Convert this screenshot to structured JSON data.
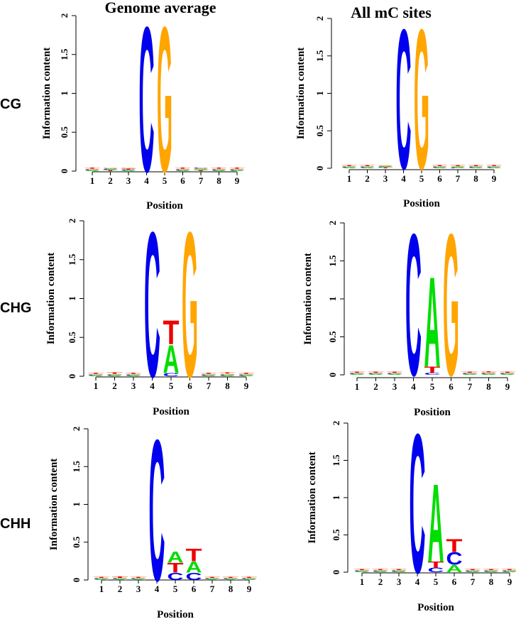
{
  "figure": {
    "col_titles": [
      "Genome average",
      "All mC sites"
    ],
    "row_labels": [
      "CG",
      "CHG",
      "CHH"
    ],
    "colors": {
      "A": "#00dd00",
      "C": "#0000ee",
      "G": "#ffa500",
      "T": "#ee0000"
    }
  },
  "chart_data": [
    {
      "id": "cg-genome",
      "type": "sequence_logo",
      "context": "CG",
      "title": "Genome average",
      "xlabel": "Position",
      "ylabel": "Information content",
      "ylim": [
        0,
        2
      ],
      "y_ticks": [
        "0",
        "0.5",
        "1",
        "1.5",
        "2"
      ],
      "x_ticks": [
        "1",
        "2",
        "3",
        "4",
        "5",
        "6",
        "7",
        "8",
        "9"
      ],
      "positions": [
        [
          [
            "A",
            0.01
          ],
          [
            "C",
            0.01
          ],
          [
            "G",
            0.01
          ],
          [
            "T",
            0.01
          ]
        ],
        [
          [
            "T",
            0.01
          ],
          [
            "A",
            0.01
          ],
          [
            "C",
            0.01
          ],
          [
            "G",
            0.01
          ]
        ],
        [
          [
            "A",
            0.01
          ],
          [
            "C",
            0.01
          ],
          [
            "T",
            0.01
          ],
          [
            "G",
            0.01
          ]
        ],
        [
          [
            "C",
            1.92
          ]
        ],
        [
          [
            "G",
            1.92
          ]
        ],
        [
          [
            "A",
            0.01
          ],
          [
            "C",
            0.01
          ],
          [
            "G",
            0.01
          ],
          [
            "T",
            0.01
          ]
        ],
        [
          [
            "T",
            0.01
          ],
          [
            "A",
            0.01
          ],
          [
            "G",
            0.01
          ],
          [
            "C",
            0.01
          ]
        ],
        [
          [
            "A",
            0.01
          ],
          [
            "C",
            0.01
          ],
          [
            "G",
            0.01
          ],
          [
            "T",
            0.01
          ]
        ],
        [
          [
            "A",
            0.01
          ],
          [
            "C",
            0.01
          ],
          [
            "G",
            0.01
          ],
          [
            "T",
            0.01
          ]
        ]
      ]
    },
    {
      "id": "cg-mc",
      "type": "sequence_logo",
      "context": "CG",
      "title": "All mC sites",
      "xlabel": "Position",
      "ylabel": "Information content",
      "ylim": [
        0,
        2
      ],
      "y_ticks": [
        "0",
        "0.5",
        "1",
        "1.5",
        "2"
      ],
      "x_ticks": [
        "1",
        "2",
        "3",
        "4",
        "5",
        "6",
        "7",
        "8",
        "9"
      ],
      "positions": [
        [
          [
            "A",
            0.01
          ],
          [
            "C",
            0.01
          ],
          [
            "G",
            0.01
          ],
          [
            "T",
            0.01
          ]
        ],
        [
          [
            "A",
            0.01
          ],
          [
            "C",
            0.01
          ],
          [
            "G",
            0.01
          ],
          [
            "T",
            0.01
          ]
        ],
        [
          [
            "T",
            0.01
          ],
          [
            "C",
            0.01
          ],
          [
            "A",
            0.01
          ],
          [
            "G",
            0.01
          ]
        ],
        [
          [
            "C",
            1.92
          ]
        ],
        [
          [
            "G",
            1.92
          ]
        ],
        [
          [
            "A",
            0.01
          ],
          [
            "C",
            0.01
          ],
          [
            "G",
            0.01
          ],
          [
            "T",
            0.01
          ]
        ],
        [
          [
            "C",
            0.01
          ],
          [
            "A",
            0.01
          ],
          [
            "G",
            0.01
          ],
          [
            "T",
            0.01
          ]
        ],
        [
          [
            "A",
            0.01
          ],
          [
            "C",
            0.01
          ],
          [
            "G",
            0.01
          ],
          [
            "T",
            0.01
          ]
        ],
        [
          [
            "A",
            0.01
          ],
          [
            "C",
            0.01
          ],
          [
            "G",
            0.01
          ],
          [
            "T",
            0.01
          ]
        ]
      ]
    },
    {
      "id": "chg-genome",
      "type": "sequence_logo",
      "context": "CHG",
      "title": "",
      "xlabel": "Position",
      "ylabel": "Information content",
      "ylim": [
        0,
        2
      ],
      "y_ticks": [
        "0",
        "0.5",
        "1",
        "1.5",
        "2"
      ],
      "x_ticks": [
        "1",
        "2",
        "3",
        "4",
        "5",
        "6",
        "7",
        "8",
        "9"
      ],
      "positions": [
        [
          [
            "A",
            0.01
          ],
          [
            "C",
            0.01
          ],
          [
            "G",
            0.01
          ],
          [
            "T",
            0.01
          ]
        ],
        [
          [
            "A",
            0.01
          ],
          [
            "C",
            0.01
          ],
          [
            "G",
            0.01
          ],
          [
            "T",
            0.015
          ]
        ],
        [
          [
            "A",
            0.01
          ],
          [
            "C",
            0.01
          ],
          [
            "G",
            0.01
          ],
          [
            "T",
            0.01
          ]
        ],
        [
          [
            "C",
            1.92
          ]
        ],
        [
          [
            "C",
            0.04
          ],
          [
            "A",
            0.37
          ],
          [
            "T",
            0.32
          ]
        ],
        [
          [
            "G",
            1.92
          ]
        ],
        [
          [
            "A",
            0.01
          ],
          [
            "C",
            0.01
          ],
          [
            "G",
            0.01
          ],
          [
            "T",
            0.01
          ]
        ],
        [
          [
            "A",
            0.01
          ],
          [
            "C",
            0.01
          ],
          [
            "G",
            0.015
          ],
          [
            "T",
            0.01
          ]
        ],
        [
          [
            "A",
            0.01
          ],
          [
            "C",
            0.01
          ],
          [
            "G",
            0.01
          ],
          [
            "T",
            0.01
          ]
        ]
      ]
    },
    {
      "id": "chg-mc",
      "type": "sequence_logo",
      "context": "CHG",
      "title": "",
      "xlabel": "Position",
      "ylabel": "Information content",
      "ylim": [
        0,
        2
      ],
      "y_ticks": [
        "0",
        "0.5",
        "1",
        "1.5",
        "2"
      ],
      "x_ticks": [
        "1",
        "2",
        "3",
        "4",
        "5",
        "6",
        "7",
        "8",
        "9"
      ],
      "positions": [
        [
          [
            "A",
            0.01
          ],
          [
            "C",
            0.01
          ],
          [
            "G",
            0.01
          ],
          [
            "T",
            0.01
          ]
        ],
        [
          [
            "A",
            0.01
          ],
          [
            "C",
            0.01
          ],
          [
            "G",
            0.01
          ],
          [
            "T",
            0.01
          ]
        ],
        [
          [
            "A",
            0.01
          ],
          [
            "C",
            0.01
          ],
          [
            "G",
            0.01
          ],
          [
            "T",
            0.01
          ]
        ],
        [
          [
            "C",
            1.92
          ]
        ],
        [
          [
            "C",
            0.03
          ],
          [
            "T",
            0.08
          ],
          [
            "A",
            1.22
          ]
        ],
        [
          [
            "G",
            1.92
          ]
        ],
        [
          [
            "A",
            0.01
          ],
          [
            "C",
            0.01
          ],
          [
            "G",
            0.01
          ],
          [
            "T",
            0.01
          ]
        ],
        [
          [
            "A",
            0.01
          ],
          [
            "C",
            0.01
          ],
          [
            "G",
            0.015
          ],
          [
            "T",
            0.01
          ]
        ],
        [
          [
            "A",
            0.01
          ],
          [
            "C",
            0.01
          ],
          [
            "G",
            0.01
          ],
          [
            "T",
            0.01
          ]
        ]
      ]
    },
    {
      "id": "chh-genome",
      "type": "sequence_logo",
      "context": "CHH",
      "title": "",
      "xlabel": "Position",
      "ylabel": "Information content",
      "ylim": [
        0,
        2
      ],
      "y_ticks": [
        "0",
        "0.5",
        "1",
        "1.5",
        "2"
      ],
      "x_ticks": [
        "1",
        "2",
        "3",
        "4",
        "5",
        "6",
        "7",
        "8",
        "9"
      ],
      "positions": [
        [
          [
            "A",
            0.01
          ],
          [
            "C",
            0.01
          ],
          [
            "G",
            0.01
          ],
          [
            "T",
            0.01
          ]
        ],
        [
          [
            "A",
            0.01
          ],
          [
            "C",
            0.01
          ],
          [
            "G",
            0.01
          ],
          [
            "T",
            0.015
          ]
        ],
        [
          [
            "A",
            0.01
          ],
          [
            "C",
            0.01
          ],
          [
            "G",
            0.01
          ],
          [
            "T",
            0.01
          ]
        ],
        [
          [
            "C",
            1.92
          ]
        ],
        [
          [
            "C",
            0.1
          ],
          [
            "T",
            0.13
          ],
          [
            "A",
            0.15
          ]
        ],
        [
          [
            "C",
            0.1
          ],
          [
            "A",
            0.15
          ],
          [
            "T",
            0.17
          ]
        ],
        [
          [
            "A",
            0.01
          ],
          [
            "C",
            0.01
          ],
          [
            "G",
            0.01
          ],
          [
            "T",
            0.01
          ]
        ],
        [
          [
            "A",
            0.01
          ],
          [
            "C",
            0.01
          ],
          [
            "G",
            0.01
          ],
          [
            "T",
            0.01
          ]
        ],
        [
          [
            "A",
            0.01
          ],
          [
            "C",
            0.01
          ],
          [
            "G",
            0.01
          ],
          [
            "T",
            0.01
          ]
        ]
      ]
    },
    {
      "id": "chh-mc",
      "type": "sequence_logo",
      "context": "CHH",
      "title": "",
      "xlabel": "Position",
      "ylabel": "Information content",
      "ylim": [
        0,
        2
      ],
      "y_ticks": [
        "0",
        "0.5",
        "1",
        "1.5",
        "2"
      ],
      "x_ticks": [
        "1",
        "2",
        "3",
        "4",
        "5",
        "6",
        "7",
        "8",
        "9"
      ],
      "positions": [
        [
          [
            "A",
            0.01
          ],
          [
            "C",
            0.01
          ],
          [
            "G",
            0.01
          ],
          [
            "T",
            0.01
          ]
        ],
        [
          [
            "A",
            0.01
          ],
          [
            "C",
            0.01
          ],
          [
            "G",
            0.01
          ],
          [
            "T",
            0.01
          ]
        ],
        [
          [
            "A",
            0.01
          ],
          [
            "C",
            0.01
          ],
          [
            "G",
            0.01
          ],
          [
            "T",
            0.01
          ]
        ],
        [
          [
            "C",
            1.92
          ]
        ],
        [
          [
            "C",
            0.06
          ],
          [
            "T",
            0.08
          ],
          [
            "A",
            1.08
          ]
        ],
        [
          [
            "A",
            0.1
          ],
          [
            "C",
            0.17
          ],
          [
            "T",
            0.18
          ]
        ],
        [
          [
            "A",
            0.01
          ],
          [
            "C",
            0.01
          ],
          [
            "G",
            0.01
          ],
          [
            "T",
            0.01
          ]
        ],
        [
          [
            "A",
            0.01
          ],
          [
            "C",
            0.01
          ],
          [
            "G",
            0.01
          ],
          [
            "T",
            0.01
          ]
        ],
        [
          [
            "A",
            0.01
          ],
          [
            "C",
            0.01
          ],
          [
            "G",
            0.01
          ],
          [
            "T",
            0.01
          ]
        ]
      ]
    }
  ]
}
